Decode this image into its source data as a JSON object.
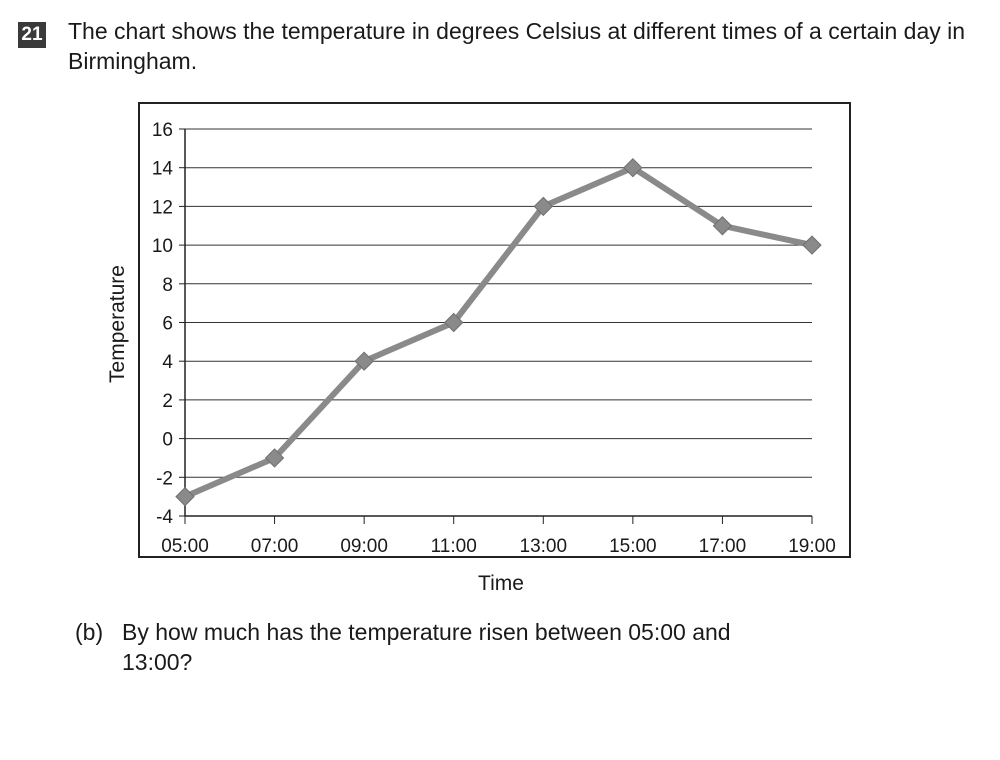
{
  "question": {
    "number": "21",
    "text": "The chart shows the temperature in degrees Celsius at different times of a certain day in Birmingham."
  },
  "part_b": {
    "label": "(b)",
    "text": "By how much has the temperature risen between 05:00 and 13:00?"
  },
  "chart_data": {
    "type": "line",
    "title": "",
    "xlabel": "Time",
    "ylabel": "Temperature",
    "categories": [
      "05:00",
      "07:00",
      "09:00",
      "11:00",
      "13:00",
      "15:00",
      "17:00",
      "19:00"
    ],
    "series": [
      {
        "values": [
          -3,
          -1,
          4,
          6,
          12,
          14,
          11,
          10
        ]
      }
    ],
    "ylim": [
      -4,
      16
    ],
    "yticks": [
      -4,
      -2,
      0,
      2,
      4,
      6,
      8,
      10,
      12,
      14,
      16
    ],
    "grid": true,
    "marker": "diamond",
    "colors": {
      "line": "#8a8a8a",
      "marker": "#8a8a8a",
      "grid": "#333333",
      "frame": "#222222"
    }
  }
}
